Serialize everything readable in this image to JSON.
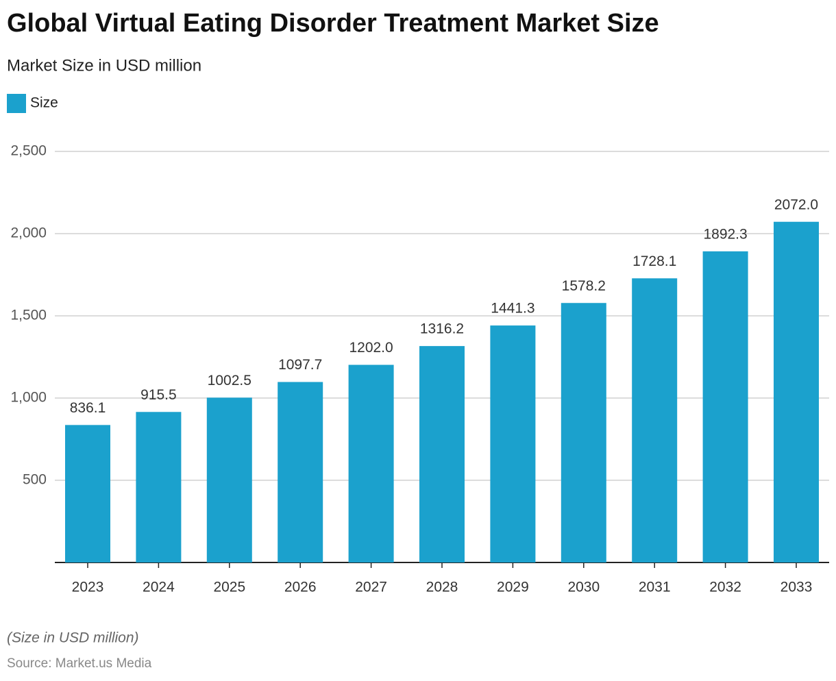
{
  "chart_data": {
    "type": "bar",
    "title": "Global Virtual Eating Disorder Treatment Market Size",
    "subtitle": "Market Size in USD million",
    "categories": [
      "2023",
      "2024",
      "2025",
      "2026",
      "2027",
      "2028",
      "2029",
      "2030",
      "2031",
      "2032",
      "2033"
    ],
    "series": [
      {
        "name": "Size",
        "color": "#1ba1cd",
        "values": [
          836.1,
          915.5,
          1002.5,
          1097.7,
          1202.0,
          1316.2,
          1441.3,
          1578.2,
          1728.1,
          1892.3,
          2072.0
        ],
        "value_labels": [
          "836.1",
          "915.5",
          "1002.5",
          "1097.7",
          "1202.0",
          "1316.2",
          "1441.3",
          "1578.2",
          "1728.1",
          "1892.3",
          "2072.0"
        ]
      }
    ],
    "ylim": [
      0,
      2500
    ],
    "yticks": [
      500,
      {
        "value": 1000,
        "label": "1,000"
      },
      {
        "value": 1500,
        "label": "1,500"
      },
      {
        "value": 2000,
        "label": "2,000"
      },
      {
        "value": 2500,
        "label": "2,500"
      }
    ],
    "grid": true,
    "legend": "top-left",
    "note": "(Size in USD million)",
    "source": "Source: Market.us Media"
  }
}
